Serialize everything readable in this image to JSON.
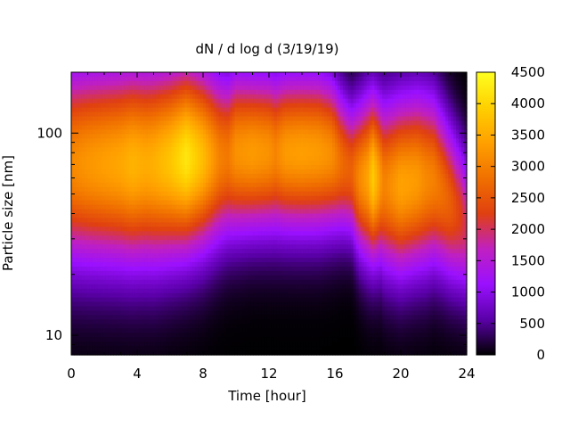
{
  "chart_data": {
    "type": "heatmap",
    "title": "dN / d log d (3/19/19)",
    "xlabel": "Time [hour]",
    "ylabel": "Particle size [nm]",
    "xlim": [
      0,
      24
    ],
    "ylim": [
      8,
      200
    ],
    "y_scale": "log",
    "x_ticks": [
      0,
      4,
      8,
      12,
      16,
      20,
      24
    ],
    "x_tick_labels": [
      "0",
      "4",
      "8",
      "12",
      "16",
      "20",
      "24"
    ],
    "y_ticks": [
      10,
      100
    ],
    "y_tick_labels": [
      "10",
      "100"
    ],
    "colorbar": {
      "min": 0,
      "max": 4500,
      "ticks": [
        0,
        500,
        1000,
        1500,
        2000,
        2500,
        3000,
        3500,
        4000,
        4500
      ],
      "tick_labels": [
        "0",
        "500",
        "1000",
        "1500",
        "2000",
        "2500",
        "3000",
        "3500",
        "4000",
        "4500"
      ],
      "colormap": "black-purple-red-orange-yellow",
      "colors": [
        "#000000",
        "#5a00a8",
        "#9a10ff",
        "#c020c0",
        "#e04010",
        "#f07000",
        "#ffa000",
        "#ffd000",
        "#ffff20"
      ]
    },
    "time_profile": {
      "hours": [
        0,
        1,
        2,
        3,
        3.7,
        4.5,
        5,
        6,
        7,
        8,
        9,
        9.5,
        10,
        11,
        12,
        12.4,
        13,
        14,
        15,
        15.8,
        16.5,
        17,
        17.5,
        18,
        18.3,
        18.8,
        19,
        20,
        21,
        21.5,
        22,
        23,
        24
      ],
      "peak_diameter_nm": [
        70,
        70,
        70,
        70,
        70,
        70,
        70,
        72,
        75,
        75,
        75,
        76,
        80,
        80,
        80,
        79,
        80,
        80,
        80,
        78,
        70,
        65,
        60,
        60,
        60,
        58,
        55,
        55,
        58,
        58,
        58,
        45,
        35
      ],
      "peak_concentration": [
        3100,
        3250,
        3350,
        3450,
        3600,
        3500,
        3550,
        3800,
        4200,
        3700,
        3000,
        2900,
        3200,
        3300,
        3200,
        3050,
        3300,
        3350,
        3300,
        3150,
        2700,
        2600,
        3100,
        3400,
        3900,
        3200,
        3000,
        3400,
        3300,
        3100,
        3000,
        2600,
        2000
      ],
      "log_width": [
        0.34,
        0.34,
        0.34,
        0.34,
        0.34,
        0.34,
        0.34,
        0.33,
        0.32,
        0.31,
        0.29,
        0.28,
        0.28,
        0.27,
        0.27,
        0.27,
        0.27,
        0.27,
        0.27,
        0.26,
        0.24,
        0.23,
        0.26,
        0.28,
        0.28,
        0.28,
        0.29,
        0.3,
        0.3,
        0.3,
        0.29,
        0.27,
        0.25
      ]
    }
  }
}
